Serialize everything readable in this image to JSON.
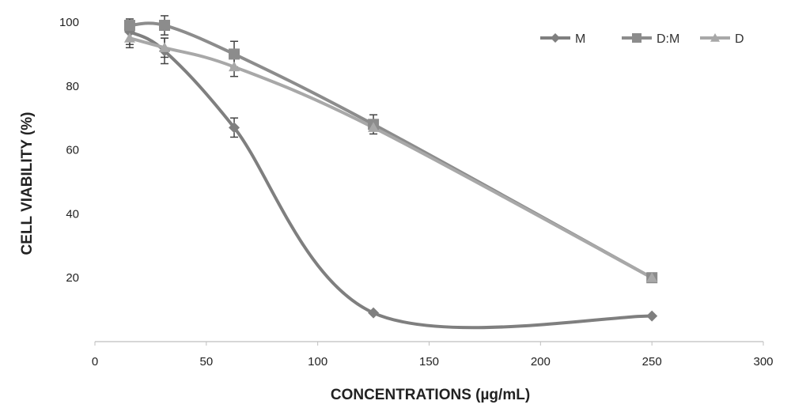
{
  "chart_data": {
    "type": "line",
    "title": "",
    "xlabel": "CONCENTRATIONS (µg/mL)",
    "ylabel": "CELL VIABILITY (%)",
    "xlim": [
      0,
      300
    ],
    "ylim": [
      0,
      100
    ],
    "xticks": [
      0,
      50,
      100,
      150,
      200,
      250,
      300
    ],
    "yticks": [
      20,
      40,
      60,
      80,
      100
    ],
    "x_tick_labels": [
      "0",
      "50",
      "100",
      "150",
      "200",
      "250",
      "300"
    ],
    "y_tick_labels": [
      "20",
      "40",
      "60",
      "80",
      "100"
    ],
    "grid": false,
    "legend_position": "top-right",
    "series": [
      {
        "name": "M",
        "marker": "diamond",
        "color": "#7f7f7f",
        "smooth": true,
        "x": [
          15.6,
          31.25,
          62.5,
          125,
          250
        ],
        "y": [
          97,
          91,
          67,
          9,
          8
        ],
        "err": [
          4,
          4,
          3,
          0,
          0
        ]
      },
      {
        "name": "D:M",
        "marker": "square",
        "color": "#8c8c8c",
        "smooth": true,
        "x": [
          15.6,
          31.25,
          62.5,
          125,
          250
        ],
        "y": [
          99,
          99,
          90,
          68,
          20
        ],
        "err": [
          0,
          3,
          4,
          3,
          0
        ]
      },
      {
        "name": "D",
        "marker": "triangle",
        "color": "#a8a8a8",
        "smooth": true,
        "x": [
          15.6,
          31.25,
          62.5,
          125,
          250
        ],
        "y": [
          95,
          92,
          86,
          67,
          20
        ],
        "err": [
          3,
          3,
          3,
          0,
          0
        ]
      }
    ]
  }
}
